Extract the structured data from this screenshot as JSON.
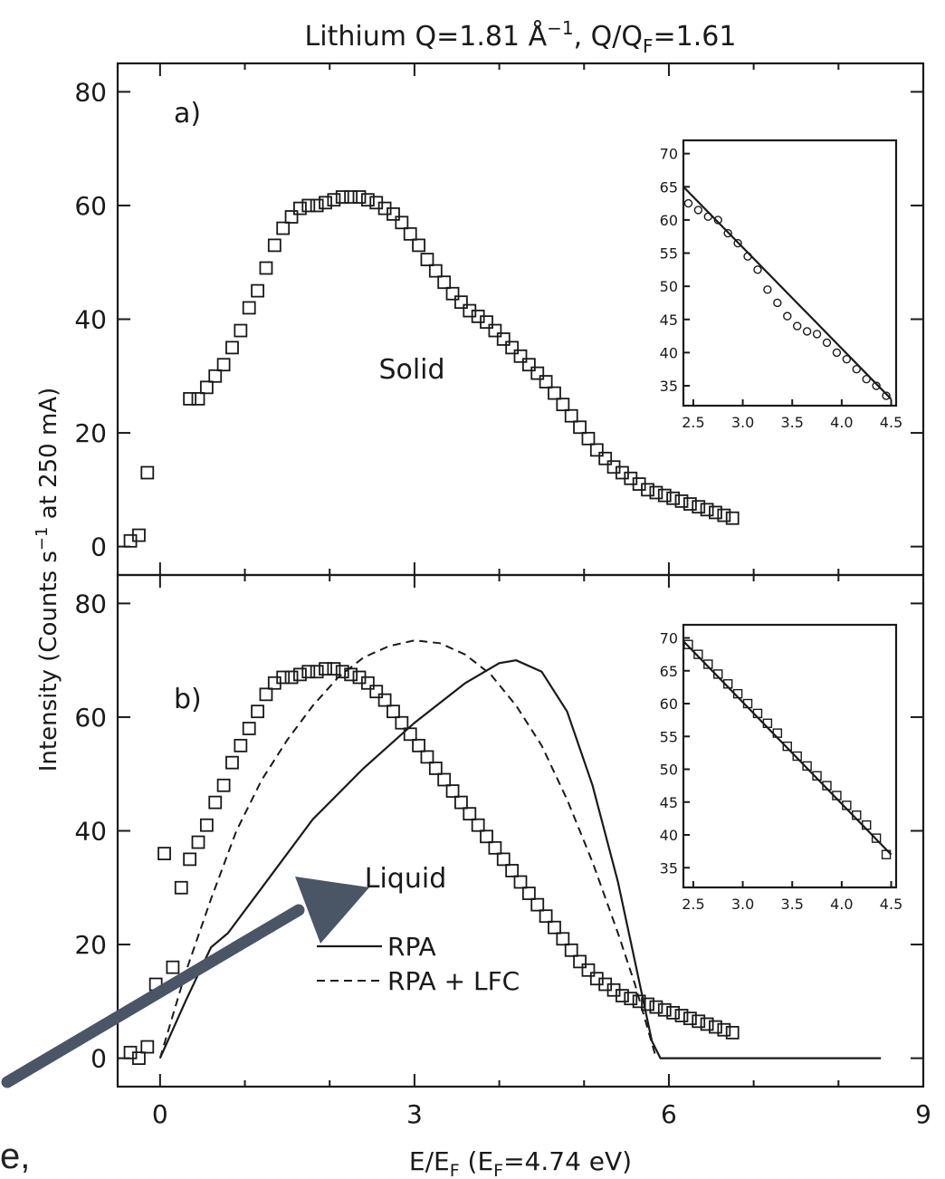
{
  "figure_title": {
    "prefix": "Lithium  Q=1.81  Å",
    "superscript": "−1",
    "middle": ",  Q/Q",
    "subscript": "F",
    "suffix": "=1.61"
  },
  "y_axis_label": {
    "part1": "Intensity  (Counts  s",
    "superscript": "−1",
    "part2": "  at  250  mA)"
  },
  "x_axis_label": {
    "part1": "E/E",
    "sub1": "F",
    "part2": "  (E",
    "sub2": "F",
    "part3": "=4.74  eV)"
  },
  "page_fragment_text": "e,",
  "chart_data": [
    {
      "type": "scatter",
      "panel_label": "a)",
      "annotation": "Solid",
      "xlim": [
        -0.5,
        9
      ],
      "ylim": [
        -5,
        85
      ],
      "x_ticks": [
        0,
        3,
        6,
        9
      ],
      "x_tick_labels_shown": false,
      "y_ticks": [
        0,
        20,
        40,
        60,
        80
      ],
      "y_tick_labels": [
        "0",
        "20",
        "40",
        "60",
        "80"
      ],
      "series": [
        {
          "marker": "open-square",
          "x": [
            -0.35,
            -0.25,
            -0.15,
            0.35,
            0.45,
            0.55,
            0.65,
            0.75,
            0.85,
            0.95,
            1.05,
            1.15,
            1.25,
            1.35,
            1.45,
            1.55,
            1.65,
            1.75,
            1.85,
            1.95,
            2.05,
            2.15,
            2.25,
            2.35,
            2.45,
            2.55,
            2.65,
            2.75,
            2.85,
            2.95,
            3.05,
            3.15,
            3.25,
            3.35,
            3.45,
            3.55,
            3.65,
            3.75,
            3.85,
            3.95,
            4.05,
            4.15,
            4.25,
            4.35,
            4.45,
            4.55,
            4.65,
            4.75,
            4.85,
            4.95,
            5.05,
            5.15,
            5.25,
            5.35,
            5.45,
            5.55,
            5.65,
            5.75,
            5.85,
            5.95,
            6.05,
            6.15,
            6.25,
            6.35,
            6.45,
            6.55,
            6.65,
            6.75
          ],
          "y": [
            1,
            2,
            13,
            26,
            26,
            28,
            30,
            32,
            35,
            38,
            42,
            45,
            49,
            53,
            56,
            58,
            59.5,
            60,
            60,
            60.5,
            61,
            61.5,
            61.5,
            61.5,
            61,
            60.5,
            59.5,
            58.5,
            57,
            55,
            53,
            50.5,
            48.5,
            46.5,
            44.5,
            43,
            41.5,
            40.5,
            39.5,
            38,
            36.5,
            35,
            33.5,
            32,
            30.5,
            29,
            27,
            25,
            23,
            21,
            19,
            17,
            15.5,
            14,
            13,
            12,
            11,
            10,
            9.5,
            9,
            8.5,
            8,
            7.5,
            7,
            6.5,
            6,
            5.5,
            5
          ]
        }
      ],
      "inset": {
        "xlim": [
          2.4,
          4.55
        ],
        "ylim": [
          32,
          72
        ],
        "x_ticks": [
          2.5,
          3.0,
          3.5,
          4.0,
          4.5
        ],
        "x_tick_labels": [
          "2.5",
          "3.0",
          "3.5",
          "4.0",
          "4.5"
        ],
        "y_ticks": [
          35,
          40,
          45,
          50,
          55,
          60,
          65,
          70
        ],
        "y_tick_labels": [
          "35",
          "40",
          "45",
          "50",
          "55",
          "60",
          "65",
          "70"
        ],
        "line": {
          "x": [
            2.4,
            4.5
          ],
          "y": [
            65,
            33
          ]
        },
        "points": {
          "x": [
            2.45,
            2.55,
            2.65,
            2.75,
            2.85,
            2.95,
            3.05,
            3.15,
            3.25,
            3.35,
            3.45,
            3.55,
            3.65,
            3.75,
            3.85,
            3.95,
            4.05,
            4.15,
            4.25,
            4.35,
            4.45
          ],
          "y": [
            62.5,
            61.5,
            60.5,
            60,
            58,
            56.5,
            54.5,
            52.5,
            49.5,
            47.5,
            45.5,
            44,
            43.2,
            42.8,
            41.5,
            40,
            39,
            37.5,
            36,
            35,
            33.5
          ]
        }
      }
    },
    {
      "type": "scatter",
      "panel_label": "b)",
      "annotation": "Liquid",
      "xlim": [
        -0.5,
        9
      ],
      "ylim": [
        -5,
        85
      ],
      "x_ticks": [
        0,
        3,
        6,
        9
      ],
      "x_tick_labels": [
        "0",
        "3",
        "6",
        "9"
      ],
      "y_ticks": [
        0,
        20,
        40,
        60,
        80
      ],
      "y_tick_labels": [
        "0",
        "20",
        "40",
        "60",
        "80"
      ],
      "legend": [
        {
          "label": "RPA",
          "style": "solid"
        },
        {
          "label": "RPA  +  LFC",
          "style": "dashed"
        }
      ],
      "series": [
        {
          "marker": "open-square",
          "x": [
            -0.35,
            -0.25,
            -0.15,
            -0.05,
            0.05,
            0.15,
            0.25,
            0.35,
            0.45,
            0.55,
            0.65,
            0.75,
            0.85,
            0.95,
            1.05,
            1.15,
            1.25,
            1.35,
            1.45,
            1.55,
            1.65,
            1.75,
            1.85,
            1.95,
            2.05,
            2.15,
            2.25,
            2.35,
            2.45,
            2.55,
            2.65,
            2.75,
            2.85,
            2.95,
            3.05,
            3.15,
            3.25,
            3.35,
            3.45,
            3.55,
            3.65,
            3.75,
            3.85,
            3.95,
            4.05,
            4.15,
            4.25,
            4.35,
            4.45,
            4.55,
            4.65,
            4.75,
            4.85,
            4.95,
            5.05,
            5.15,
            5.25,
            5.35,
            5.45,
            5.55,
            5.65,
            5.75,
            5.85,
            5.95,
            6.05,
            6.15,
            6.25,
            6.35,
            6.45,
            6.55,
            6.65,
            6.75
          ],
          "y": [
            1,
            0,
            2,
            13,
            36,
            16,
            30,
            35,
            38,
            41,
            45,
            48,
            52,
            55,
            58,
            61,
            64,
            66,
            67,
            67,
            67.5,
            68,
            68,
            68.5,
            68.5,
            68,
            67.5,
            67,
            66,
            64.5,
            63,
            61,
            59,
            57,
            55,
            53,
            51,
            49,
            47,
            45,
            43,
            41,
            39,
            37,
            35,
            33,
            31,
            29,
            27,
            25,
            23,
            21,
            19,
            17,
            15.5,
            14,
            13,
            12,
            11,
            10.5,
            10,
            9.5,
            9,
            8.5,
            8,
            7.5,
            7,
            6.5,
            6,
            5.5,
            5,
            4.5
          ]
        },
        {
          "name": "RPA",
          "style": "solid",
          "x": [
            0,
            0.3,
            0.6,
            0.8,
            1.2,
            1.8,
            2.4,
            3.0,
            3.6,
            4.0,
            4.2,
            4.5,
            4.8,
            5.1,
            5.4,
            5.6,
            5.8,
            5.9,
            6.5,
            7.5,
            8.5
          ],
          "y": [
            0,
            10,
            19.5,
            22,
            30,
            42,
            51,
            59,
            66,
            69.5,
            70,
            68,
            61,
            48,
            31,
            17,
            3,
            0,
            0,
            0,
            0
          ]
        },
        {
          "name": "RPA  +  LFC",
          "style": "dashed",
          "x": [
            0,
            0.3,
            0.6,
            0.9,
            1.2,
            1.5,
            1.8,
            2.1,
            2.4,
            2.7,
            3.0,
            3.3,
            3.6,
            3.9,
            4.2,
            4.5,
            4.8,
            5.1,
            5.4,
            5.6,
            5.85
          ],
          "y": [
            0,
            15,
            28,
            40,
            49,
            56,
            62,
            67,
            70.5,
            72.5,
            73.5,
            73,
            71,
            67.5,
            62,
            55,
            45.5,
            34.5,
            22,
            13,
            0
          ]
        }
      ],
      "inset": {
        "xlim": [
          2.4,
          4.55
        ],
        "ylim": [
          32,
          72
        ],
        "x_ticks": [
          2.5,
          3.0,
          3.5,
          4.0,
          4.5
        ],
        "x_tick_labels": [
          "2.5",
          "3.0",
          "3.5",
          "4.0",
          "4.5"
        ],
        "y_ticks": [
          35,
          40,
          45,
          50,
          55,
          60,
          65,
          70
        ],
        "y_tick_labels": [
          "35",
          "40",
          "45",
          "50",
          "55",
          "60",
          "65",
          "70"
        ],
        "line": {
          "x": [
            2.4,
            4.5
          ],
          "y": [
            69.5,
            37
          ]
        },
        "points": {
          "x": [
            2.45,
            2.55,
            2.65,
            2.75,
            2.85,
            2.95,
            3.05,
            3.15,
            3.25,
            3.35,
            3.45,
            3.55,
            3.65,
            3.75,
            3.85,
            3.95,
            4.05,
            4.15,
            4.25,
            4.35,
            4.45
          ],
          "y": [
            69,
            67.5,
            66,
            64.5,
            63,
            61.5,
            60,
            58.5,
            57,
            55.5,
            53.5,
            52,
            50.5,
            49,
            47.5,
            46,
            44.5,
            43,
            41.5,
            39.5,
            37
          ]
        }
      }
    }
  ],
  "colors": {
    "ink": "#1a1a1a",
    "arrow": "#4a5566"
  }
}
